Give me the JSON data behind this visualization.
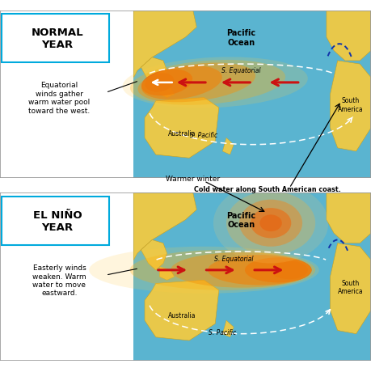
{
  "bg_color": "#ffffff",
  "ocean_color": "#5ab4d0",
  "land_color": "#e8c84a",
  "land_edge": "#c8a020",
  "panel1_label": "NORMAL\nYEAR",
  "panel2_label": "EL NIÑO\nYEAR",
  "panel1_text": "Equatorial\nwinds gather\nwarm water pool\ntoward the west.",
  "panel2_text": "Easterly winds\nweaken. Warm\nwater to move\neastward.",
  "annotation1": "Cold water along South American coast.",
  "annotation2": "Warmer winter",
  "pacific_ocean": "Pacific\nOcean",
  "s_equatorial": "S. Equatorial",
  "s_pacific": "S. Pacific",
  "australia": "Australia",
  "south_america": "South\nAmerica",
  "label_box_color": "#00aadd",
  "arrow_red": "#cc1111",
  "arrow_white": "#ffffff",
  "cold_blue": "#1133aa"
}
